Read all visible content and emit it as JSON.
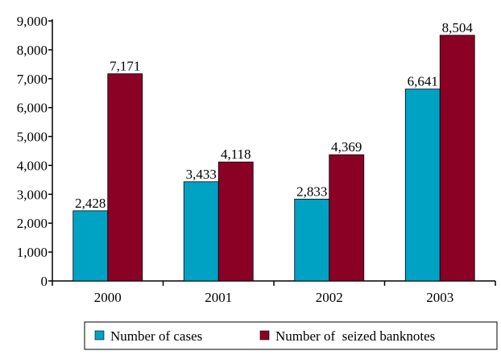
{
  "chart_data": {
    "type": "bar",
    "categories": [
      "2000",
      "2001",
      "2002",
      "2003"
    ],
    "series": [
      {
        "name": "Number of cases",
        "values": [
          2428,
          3433,
          2833,
          6641
        ],
        "labels": [
          "2,428",
          "3,433",
          "2,833",
          "6,641"
        ],
        "color": "#00A2C4"
      },
      {
        "name": "Number of  seized banknotes",
        "values": [
          7171,
          4118,
          4369,
          8504
        ],
        "labels": [
          "7,171",
          "4,118",
          "4,369",
          "8,504"
        ],
        "color": "#8B0025"
      }
    ],
    "yticks": [
      {
        "value": 0,
        "label": "0"
      },
      {
        "value": 1000,
        "label": "1,000"
      },
      {
        "value": 2000,
        "label": "2,000"
      },
      {
        "value": 3000,
        "label": "3,000"
      },
      {
        "value": 4000,
        "label": "4,000"
      },
      {
        "value": 5000,
        "label": "5,000"
      },
      {
        "value": 6000,
        "label": "6,000"
      },
      {
        "value": 7000,
        "label": "7,000"
      },
      {
        "value": 8000,
        "label": "8,000"
      },
      {
        "value": 9000,
        "label": "9,000"
      }
    ],
    "ylim": [
      0,
      9000
    ],
    "grid": false,
    "legend_position": "bottom"
  }
}
